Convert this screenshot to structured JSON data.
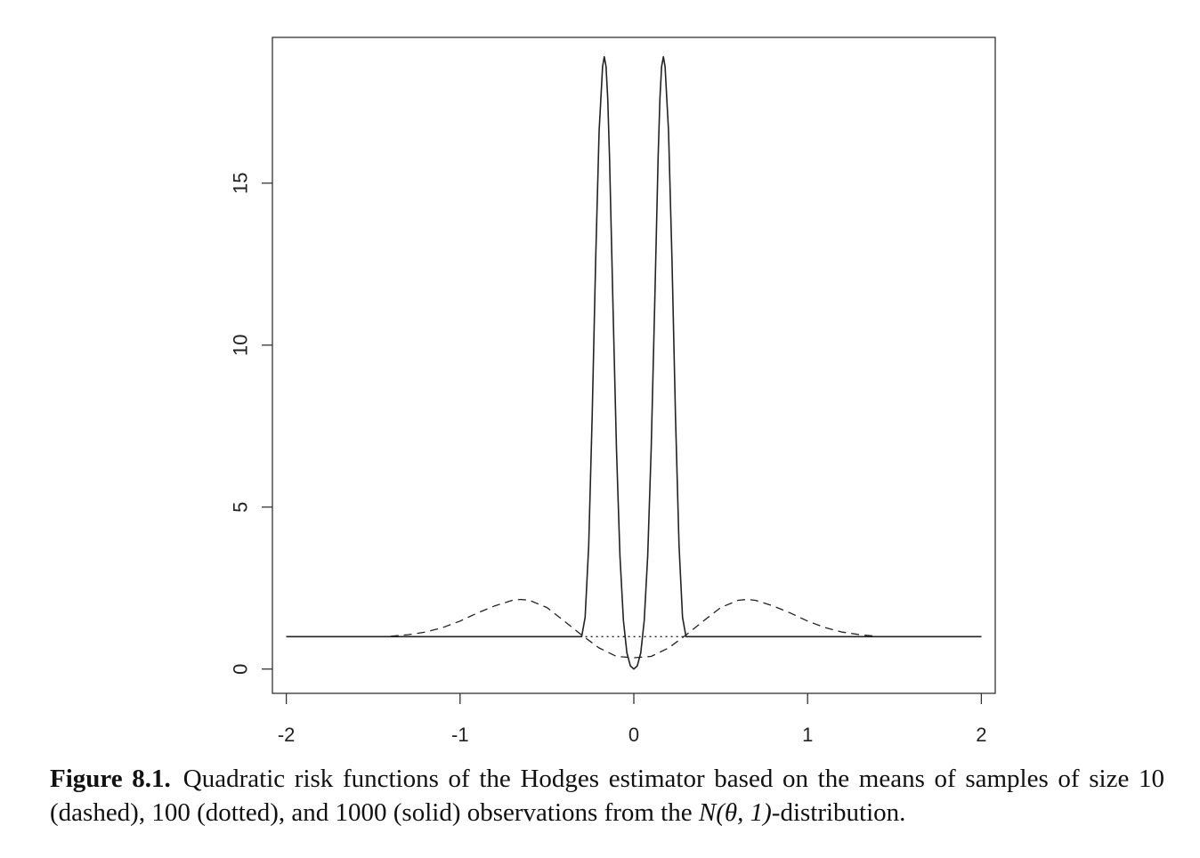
{
  "chart_data": {
    "type": "line",
    "title": "",
    "xlabel": "",
    "ylabel": "",
    "xlim": [
      -2.08,
      2.08
    ],
    "ylim": [
      -0.75,
      19.5
    ],
    "xticks": [
      -2,
      -1,
      0,
      1,
      2
    ],
    "xtick_labels": [
      "-2",
      "-1",
      "0",
      "1",
      "2"
    ],
    "yticks": [
      0,
      5,
      10,
      15
    ],
    "ytick_labels": [
      "0",
      "5",
      "10",
      "15"
    ],
    "grid": false,
    "series": [
      {
        "style": "dashed",
        "sample_size": 10,
        "x": [
          -1.4,
          -1.3,
          -1.2,
          -1.1,
          -1.0,
          -0.9,
          -0.8,
          -0.7,
          -0.65,
          -0.6,
          -0.5,
          -0.4,
          -0.3,
          -0.2,
          -0.1,
          0.0,
          0.1,
          0.2,
          0.3,
          0.4,
          0.5,
          0.6,
          0.65,
          0.7,
          0.8,
          0.9,
          1.0,
          1.1,
          1.2,
          1.3,
          1.4
        ],
        "y": [
          1.01,
          1.06,
          1.14,
          1.28,
          1.48,
          1.73,
          1.95,
          2.12,
          2.15,
          2.12,
          1.9,
          1.48,
          1.05,
          0.65,
          0.39,
          0.35,
          0.39,
          0.65,
          1.05,
          1.48,
          1.9,
          2.12,
          2.15,
          2.12,
          1.95,
          1.73,
          1.48,
          1.28,
          1.14,
          1.06,
          1.01
        ]
      },
      {
        "style": "dotted",
        "sample_size": 100,
        "x": [
          -2.0,
          -1.0,
          -0.5,
          -0.35,
          -0.3,
          0.3,
          0.35,
          0.5,
          1.0,
          2.0
        ],
        "y": [
          1.0,
          1.0,
          1.0,
          1.0,
          1.0,
          1.0,
          1.0,
          1.0,
          1.0,
          1.0
        ]
      },
      {
        "style": "solid",
        "sample_size": 1000,
        "x": [
          -2.0,
          -0.3,
          -0.28,
          -0.26,
          -0.24,
          -0.22,
          -0.2,
          -0.18,
          -0.17,
          -0.16,
          -0.15,
          -0.14,
          -0.12,
          -0.1,
          -0.08,
          -0.06,
          -0.04,
          -0.02,
          0.0,
          0.02,
          0.04,
          0.06,
          0.08,
          0.1,
          0.12,
          0.14,
          0.15,
          0.16,
          0.17,
          0.18,
          0.2,
          0.22,
          0.24,
          0.26,
          0.28,
          0.3,
          2.0
        ],
        "y": [
          1.0,
          1.0,
          1.6,
          3.8,
          7.8,
          12.6,
          16.6,
          18.6,
          18.9,
          18.6,
          17.6,
          15.8,
          11.2,
          6.8,
          3.5,
          1.5,
          0.5,
          0.1,
          0.0,
          0.1,
          0.5,
          1.5,
          3.5,
          6.8,
          11.2,
          15.8,
          17.6,
          18.6,
          18.9,
          18.6,
          16.6,
          12.6,
          7.8,
          3.8,
          1.6,
          1.0,
          1.0
        ]
      }
    ]
  },
  "caption": {
    "label": "Figure 8.1.",
    "text_before_math": "Quadratic risk functions of the Hodges estimator based on the means of samples of size 10 (dashed), 100 (dotted), and 1000 (solid) observations from the ",
    "math": "N(θ, 1)",
    "text_after_math": "-distribution."
  }
}
